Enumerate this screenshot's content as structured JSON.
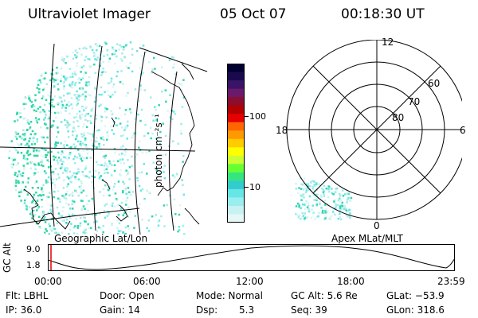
{
  "header": {
    "title": "Ultraviolet Imager",
    "date": "05 Oct 07",
    "time": "00:18:30 UT"
  },
  "geo_panel": {
    "label": "Geographic Lat/Lon"
  },
  "colorbar": {
    "unit_label": "photon cm⁻²s⁻¹",
    "ticks": [
      "100",
      "10"
    ],
    "colors": [
      "#000033",
      "#1a0a4d",
      "#3a1466",
      "#6b1a6b",
      "#8b0e2e",
      "#b30000",
      "#e60000",
      "#ff6600",
      "#ff9900",
      "#ffcc00",
      "#ffff00",
      "#ccff33",
      "#66ff33",
      "#33e680",
      "#33cccc",
      "#66e6e6",
      "#99eeee",
      "#c8f2f2",
      "#e6f7f7"
    ]
  },
  "polar_panel": {
    "label": "Apex MLat/MLT",
    "mlt_labels": [
      "12",
      "18",
      "6",
      "0"
    ],
    "mlat_labels": [
      "60",
      "70",
      "80"
    ]
  },
  "altitude_plot": {
    "axis_label": "GC Alt",
    "y_ticks": [
      "9.0",
      "1.8"
    ],
    "x_ticks": [
      "00:00",
      "06:00",
      "12:00",
      "18:00",
      "23:59"
    ]
  },
  "status": {
    "flt": "Flt: LBHL",
    "door": "Door: Open",
    "mode": "Mode: Normal",
    "gc_alt": "GC Alt: 5.6 Re",
    "glat": "GLat: −53.9",
    "ip": "IP: 36.0",
    "gain": "Gain: 14",
    "dsp_label": "Dsp:",
    "dsp_value": "5.3",
    "seq": "Seq: 39",
    "glon": "GLon: 318.6"
  }
}
